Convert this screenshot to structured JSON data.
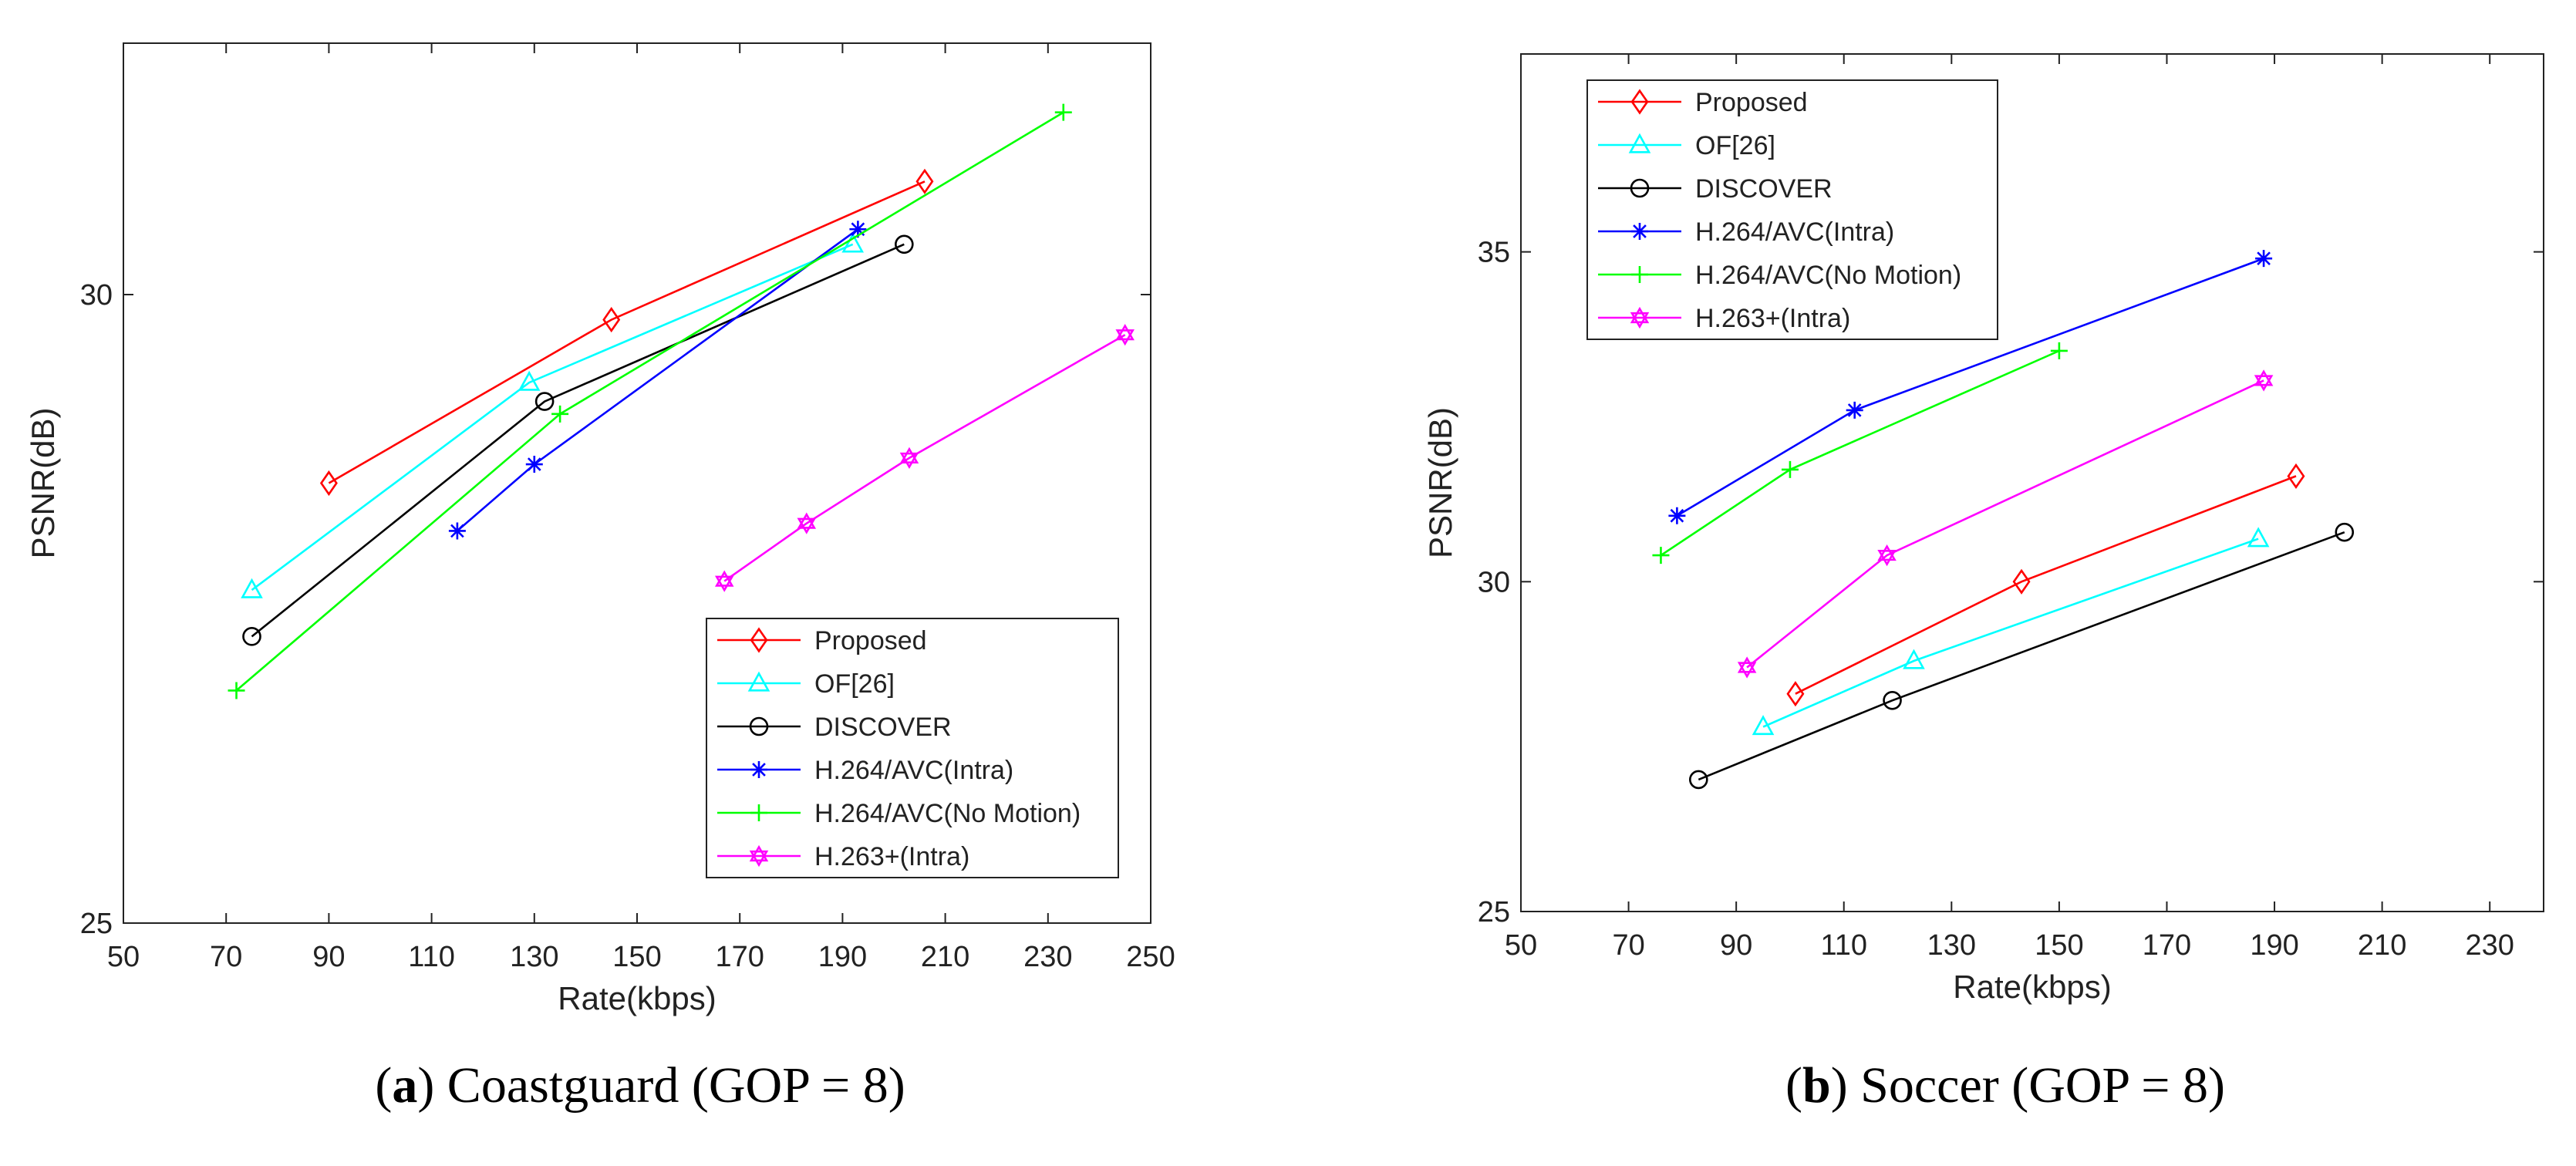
{
  "chart_data": [
    {
      "id": "a",
      "type": "line",
      "caption_letter": "a",
      "caption_text": "Coastguard (GOP = 8)",
      "xlabel": "Rate(kbps)",
      "ylabel": "PSNR(dB)",
      "xlim": [
        50,
        250
      ],
      "ylim": [
        25,
        32
      ],
      "xticks": [
        50,
        70,
        90,
        110,
        130,
        150,
        170,
        190,
        210,
        230,
        250
      ],
      "yticks": [
        25,
        30
      ],
      "legend_position": "bottom-right",
      "series": [
        {
          "name": "Proposed",
          "color": "#ff0000",
          "marker": "diamond",
          "x": [
            90,
            145,
            206
          ],
          "y": [
            28.5,
            29.8,
            30.9
          ]
        },
        {
          "name": "OF[26]",
          "color": "#00ffff",
          "marker": "triangle",
          "x": [
            75,
            129,
            192
          ],
          "y": [
            27.65,
            29.3,
            30.4
          ]
        },
        {
          "name": "DISCOVER",
          "color": "#000000",
          "marker": "circle",
          "x": [
            75,
            132,
            202
          ],
          "y": [
            27.28,
            29.15,
            30.4
          ]
        },
        {
          "name": "H.264/AVC(Intra)",
          "color": "#0000ff",
          "marker": "asterisk",
          "x": [
            115,
            130,
            193
          ],
          "y": [
            28.12,
            28.65,
            30.52
          ]
        },
        {
          "name": "H.264/AVC(No Motion)",
          "color": "#00ff00",
          "marker": "plus",
          "x": [
            72,
            135,
            233
          ],
          "y": [
            26.85,
            29.05,
            31.45
          ]
        },
        {
          "name": "H.263+(Intra)",
          "color": "#ff00ff",
          "marker": "hexagram",
          "x": [
            167,
            183,
            203,
            245
          ],
          "y": [
            27.72,
            28.18,
            28.7,
            29.68
          ]
        }
      ]
    },
    {
      "id": "b",
      "type": "line",
      "caption_letter": "b",
      "caption_text": "Soccer (GOP = 8)",
      "xlabel": "Rate(kbps)",
      "ylabel": "PSNR(dB)",
      "xlim": [
        50,
        240
      ],
      "ylim": [
        25,
        38
      ],
      "xticks": [
        50,
        70,
        90,
        110,
        130,
        150,
        170,
        190,
        210,
        230
      ],
      "yticks": [
        25,
        30,
        35
      ],
      "legend_position": "top-left",
      "series": [
        {
          "name": "Proposed",
          "color": "#ff0000",
          "marker": "diamond",
          "x": [
            101,
            143,
            194
          ],
          "y": [
            28.3,
            30.0,
            31.6
          ]
        },
        {
          "name": "OF[26]",
          "color": "#00ffff",
          "marker": "triangle",
          "x": [
            95,
            123,
            187
          ],
          "y": [
            27.8,
            28.8,
            30.65
          ]
        },
        {
          "name": "DISCOVER",
          "color": "#000000",
          "marker": "circle",
          "x": [
            83,
            119,
            203
          ],
          "y": [
            27.0,
            28.2,
            30.75
          ]
        },
        {
          "name": "H.264/AVC(Intra)",
          "color": "#0000ff",
          "marker": "asterisk",
          "x": [
            79,
            112,
            188
          ],
          "y": [
            31.0,
            32.6,
            34.9
          ]
        },
        {
          "name": "H.264/AVC(No Motion)",
          "color": "#00ff00",
          "marker": "plus",
          "x": [
            76,
            100,
            150
          ],
          "y": [
            30.4,
            31.7,
            33.5
          ]
        },
        {
          "name": "H.263+(Intra)",
          "color": "#ff00ff",
          "marker": "hexagram",
          "x": [
            92,
            118,
            188
          ],
          "y": [
            28.7,
            30.4,
            33.05
          ]
        }
      ]
    }
  ]
}
